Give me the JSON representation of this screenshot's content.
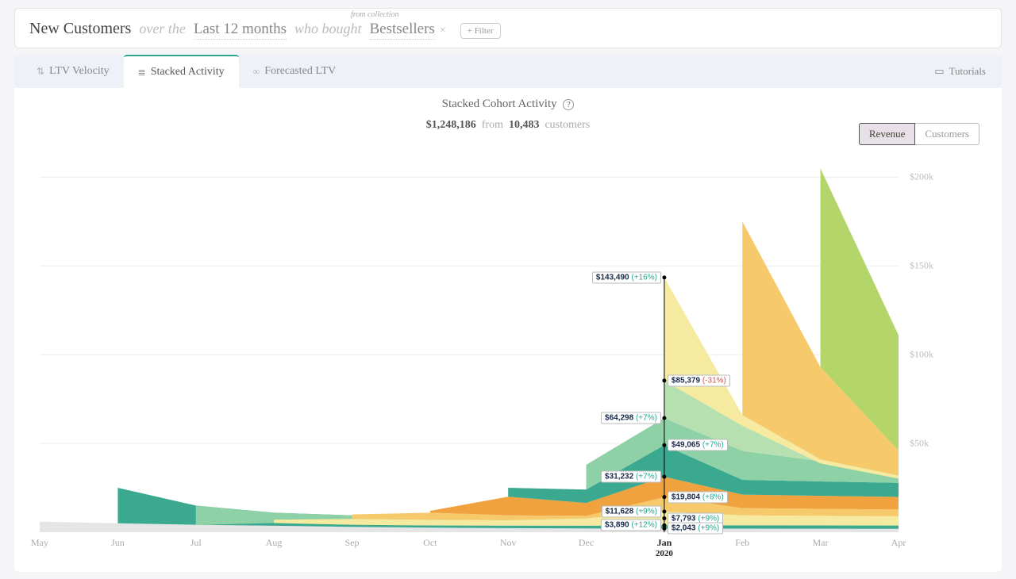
{
  "query": {
    "main": "New Customers",
    "over": "over the",
    "period": "Last 12 months",
    "who": "who bought",
    "collection_hint": "from collection",
    "collection": "Bestsellers",
    "filter_btn": "+ Filter"
  },
  "tabs": {
    "items": [
      {
        "icon": "⇅",
        "label": "LTV Velocity"
      },
      {
        "icon": "≣",
        "label": "Stacked Activity"
      },
      {
        "icon": "∞",
        "label": "Forecasted LTV"
      }
    ],
    "active_index": 1,
    "tutorials_icon": "▭",
    "tutorials_label": "Tutorials"
  },
  "chart": {
    "title": "Stacked Cohort Activity",
    "help_icon": "?",
    "sub_total": "$1,248,186",
    "sub_from": "from",
    "sub_count": "10,483",
    "sub_label": "customers",
    "toggle": {
      "revenue": "Revenue",
      "customers": "Customers",
      "active": "revenue"
    },
    "type": "stacked-area",
    "y_max": 210000,
    "y_ticks": [
      {
        "v": 50000,
        "label": "$50k"
      },
      {
        "v": 100000,
        "label": "$100k"
      },
      {
        "v": 150000,
        "label": "$150k"
      },
      {
        "v": 200000,
        "label": "$200k"
      }
    ],
    "x_labels": [
      "May",
      "Jun",
      "Jul",
      "Aug",
      "Sep",
      "Oct",
      "Nov",
      "Dec",
      "Jan",
      "Feb",
      "Mar",
      "Apr"
    ],
    "x_year_under": {
      "index": 8,
      "year": "2020"
    },
    "crosshair_index": 8,
    "series_colors": [
      "#e5e5e5",
      "#3aa98f",
      "#8fd1a6",
      "#f5eaa0",
      "#f6c96b",
      "#f0a23e",
      "#3aa98f",
      "#8fd1a6",
      "#b7e0b0",
      "#f5eaa0",
      "#f6c96b",
      "#b3d56a"
    ],
    "series": [
      [
        6000,
        5000,
        4200,
        3600,
        3000,
        2600,
        2300,
        2100,
        2043,
        2000,
        1960,
        1920
      ],
      [
        0,
        25000,
        15000,
        11000,
        9500,
        8800,
        8300,
        8000,
        7793,
        7600,
        7450,
        7300
      ],
      [
        0,
        0,
        4000,
        5200,
        4200,
        3800,
        3650,
        3640,
        3890,
        3850,
        3800,
        3750
      ],
      [
        0,
        0,
        0,
        7000,
        7500,
        7000,
        6800,
        7800,
        11628,
        9500,
        9200,
        9000
      ],
      [
        0,
        0,
        0,
        0,
        10000,
        11000,
        9500,
        9200,
        19804,
        13600,
        13200,
        12800
      ],
      [
        0,
        0,
        0,
        0,
        0,
        12000,
        20000,
        16500,
        31232,
        21200,
        20500,
        19900
      ],
      [
        0,
        0,
        0,
        0,
        0,
        0,
        25000,
        24000,
        49065,
        29500,
        28600,
        27800
      ],
      [
        0,
        0,
        0,
        0,
        0,
        0,
        0,
        38000,
        64298,
        45800,
        40000,
        35800
      ],
      [
        0,
        0,
        0,
        0,
        0,
        0,
        0,
        0,
        85379,
        60000,
        38800,
        30200
      ],
      [
        0,
        0,
        0,
        0,
        0,
        0,
        0,
        0,
        143490,
        66000,
        41000,
        32000
      ],
      [
        0,
        0,
        0,
        0,
        0,
        0,
        0,
        0,
        0,
        175000,
        93000,
        46000
      ],
      [
        0,
        0,
        0,
        0,
        0,
        0,
        0,
        0,
        0,
        0,
        205000,
        111000
      ]
    ],
    "callouts": [
      {
        "value": "$143,490",
        "pct": "(+16%)",
        "pos": true,
        "side": "left",
        "cum": 143490
      },
      {
        "value": "$85,379",
        "pct": "(-31%)",
        "pos": false,
        "side": "right",
        "cum": 85379
      },
      {
        "value": "$64,298",
        "pct": "(+7%)",
        "pos": true,
        "side": "left",
        "cum": 64298
      },
      {
        "value": "$49,065",
        "pct": "(+7%)",
        "pos": true,
        "side": "right",
        "cum": 49065
      },
      {
        "value": "$31,232",
        "pct": "(+7%)",
        "pos": true,
        "side": "left",
        "cum": 31232
      },
      {
        "value": "$19,804",
        "pct": "(+8%)",
        "pos": true,
        "side": "right",
        "cum": 19804
      },
      {
        "value": "$11,628",
        "pct": "(+9%)",
        "pos": true,
        "side": "left",
        "cum": 11628
      },
      {
        "value": "$7,793",
        "pct": "(+9%)",
        "pos": true,
        "side": "right",
        "cum": 7793
      },
      {
        "value": "$3,890",
        "pct": "(+12%)",
        "pos": true,
        "side": "left",
        "cum": 3890
      },
      {
        "value": "$2,043",
        "pct": "(+9%)",
        "pos": true,
        "side": "right",
        "cum": 2043
      }
    ]
  }
}
